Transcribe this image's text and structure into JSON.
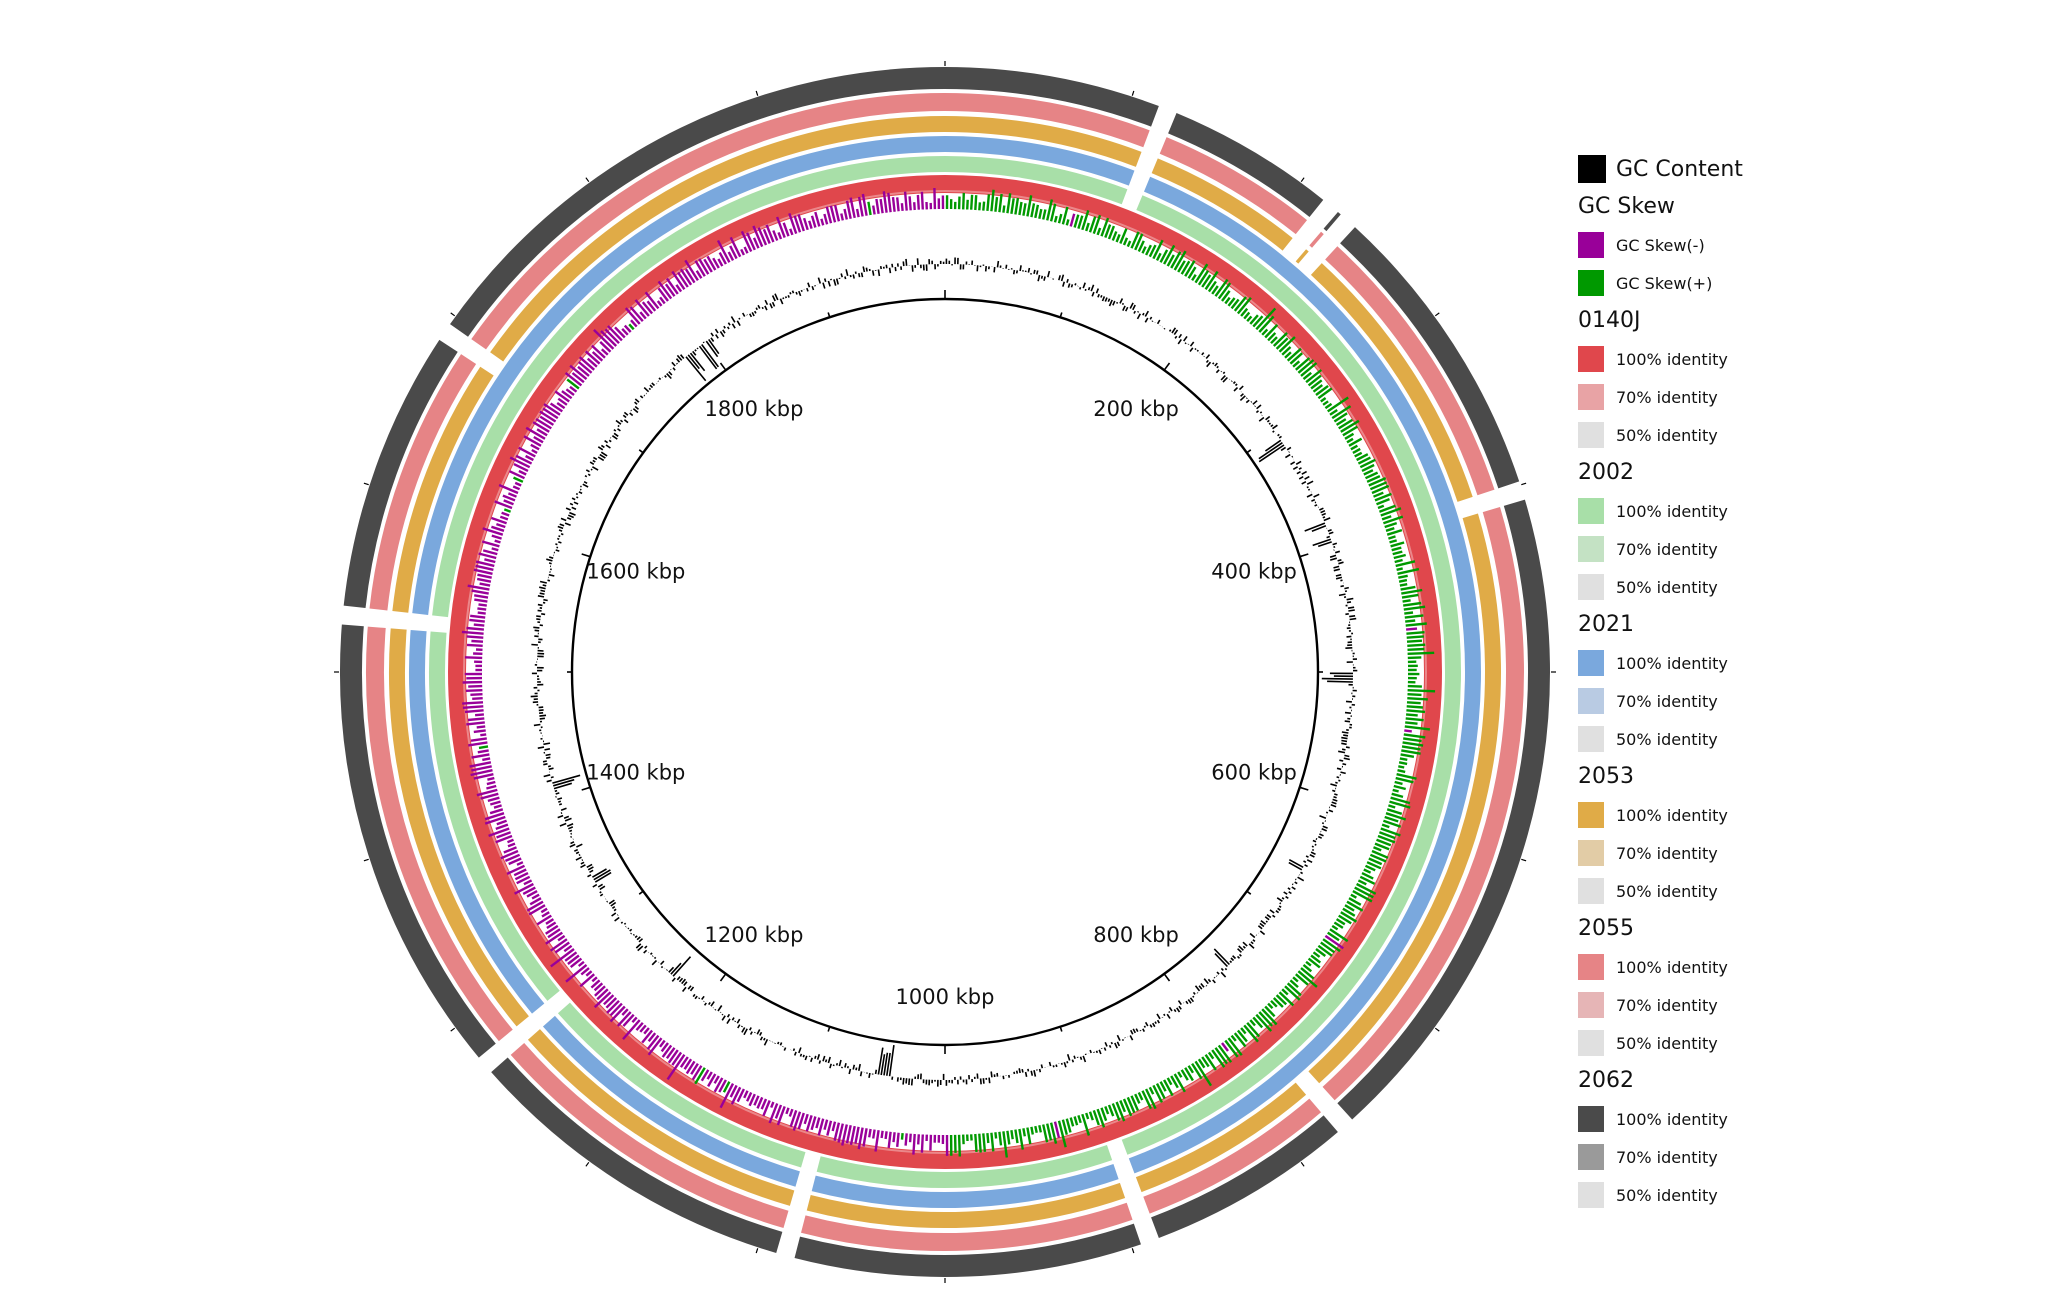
{
  "chart_data": {
    "type": "circular_genome_map",
    "scale_labels": [
      "200 kbp",
      "400 kbp",
      "600 kbp",
      "800 kbp",
      "1000 kbp",
      "1200 kbp",
      "1400 kbp",
      "1600 kbp",
      "1800 kbp"
    ],
    "scale_label_kbp": [
      200,
      400,
      600,
      800,
      1000,
      1200,
      1400,
      1600,
      1800
    ],
    "genome_length_kbp": 2000,
    "gc_skew_sign_by_region": [
      {
        "from_kbp": 0,
        "to_kbp": 1000,
        "sign": "positive"
      },
      {
        "from_kbp": 1000,
        "to_kbp": 2000,
        "sign": "negative"
      }
    ],
    "rings_inner_to_outer": [
      "0140J",
      "2002",
      "2021",
      "2053",
      "2055",
      "2062"
    ],
    "ring_gaps_kbp": [
      {
        "rings": [
          "2002",
          "2021",
          "2053",
          "2055",
          "2062"
        ],
        "at_kbp": [
          120,
          890,
          1085,
          1275,
          1530
        ]
      },
      {
        "rings": [
          "2053",
          "2055",
          "2062"
        ],
        "at_kbp": [
          220,
          232,
          403,
          770,
          1690
        ]
      }
    ]
  },
  "legend": {
    "gc_content": {
      "label": "GC Content",
      "color": "#000000"
    },
    "gc_skew": {
      "title": "GC Skew",
      "negative": {
        "label": "GC Skew(-)",
        "color": "#990099"
      },
      "positive": {
        "label": "GC Skew(+)",
        "color": "#009900"
      }
    },
    "rings": [
      {
        "name": "0140J",
        "colors": [
          "#e0474c",
          "#e8a3a5",
          "#e0e0e0"
        ],
        "labels": [
          "100% identity",
          "70% identity",
          "50% identity"
        ]
      },
      {
        "name": "2002",
        "colors": [
          "#a8dfa8",
          "#c4e2c4",
          "#e0e0e0"
        ],
        "labels": [
          "100% identity",
          "70% identity",
          "50% identity"
        ]
      },
      {
        "name": "2021",
        "colors": [
          "#7aa8dd",
          "#b9cbe3",
          "#e0e0e0"
        ],
        "labels": [
          "100% identity",
          "70% identity",
          "50% identity"
        ]
      },
      {
        "name": "2053",
        "colors": [
          "#e0ab47",
          "#e2cca6",
          "#e0e0e0"
        ],
        "labels": [
          "100% identity",
          "70% identity",
          "50% identity"
        ]
      },
      {
        "name": "2055",
        "colors": [
          "#e68486",
          "#e6b5b6",
          "#e0e0e0"
        ],
        "labels": [
          "100% identity",
          "70% identity",
          "50% identity"
        ]
      },
      {
        "name": "2062",
        "colors": [
          "#4a4a4a",
          "#9a9a9a",
          "#e0e0e0"
        ],
        "labels": [
          "100% identity",
          "70% identity",
          "50% identity"
        ]
      }
    ]
  }
}
